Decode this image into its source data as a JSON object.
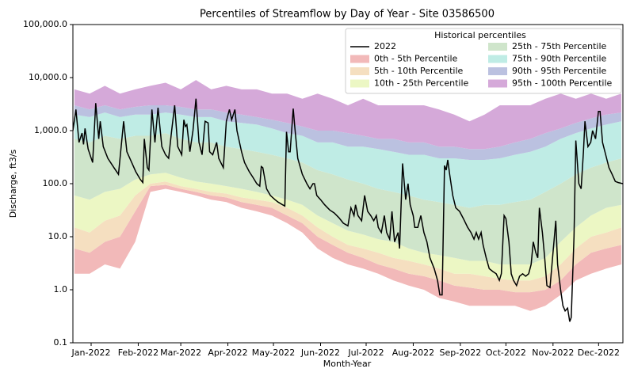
{
  "chart_data": {
    "type": "percentile-band",
    "title": "Percentiles of Streamflow by Day of Year - Site 03586500",
    "xlabel": "Month-Year",
    "ylabel": "Discharge, ft3/s",
    "legend_title": "Historical percentiles",
    "legend": "upper right",
    "ylog": true,
    "xlim": [
      -11,
      351
    ],
    "xticks": [
      {
        "value": 1,
        "label": "Jan-2022"
      },
      {
        "value": 32,
        "label": "Feb-2022"
      },
      {
        "value": 60,
        "label": "Mar-2022"
      },
      {
        "value": 91,
        "label": "Apr-2022"
      },
      {
        "value": 121,
        "label": "May-2022"
      },
      {
        "value": 152,
        "label": "Jun-2022"
      },
      {
        "value": 182,
        "label": "Jul-2022"
      },
      {
        "value": 213,
        "label": "Aug-2022"
      },
      {
        "value": 244,
        "label": "Sep-2022"
      },
      {
        "value": 274,
        "label": "Oct-2022"
      },
      {
        "value": 305,
        "label": "Nov-2022"
      },
      {
        "value": 335,
        "label": "Dec-2022"
      }
    ],
    "ylim": [
      0.1,
      100000
    ],
    "yticks": [
      0.1,
      {
        "value": 1,
        "label": "1.0"
      },
      {
        "value": 10,
        "label": "10.0"
      },
      {
        "value": 100,
        "label": "100.0"
      },
      {
        "value": 1000,
        "label": "1,000.0"
      },
      {
        "value": 10000,
        "label": "10,000.0"
      },
      {
        "value": 100000,
        "label": "100,000.0"
      }
    ],
    "x": [
      -10,
      0,
      10,
      20,
      30,
      40,
      50,
      60,
      70,
      80,
      90,
      100,
      110,
      120,
      130,
      140,
      150,
      160,
      170,
      180,
      190,
      200,
      210,
      220,
      230,
      240,
      250,
      260,
      270,
      280,
      290,
      300,
      310,
      320,
      330,
      340,
      350
    ],
    "boundaries": [
      {
        "values": [
          2,
          2,
          3,
          2.5,
          8,
          70,
          80,
          70,
          60,
          50,
          45,
          35,
          30,
          25,
          18,
          12,
          6,
          4,
          3,
          2.5,
          2,
          1.5,
          1.2,
          1,
          0.7,
          0.6,
          0.5,
          0.5,
          0.5,
          0.5,
          0.4,
          0.5,
          0.8,
          1.5,
          2,
          2.5,
          3
        ]
      },
      {
        "values": [
          6,
          5,
          8,
          10,
          30,
          90,
          95,
          80,
          70,
          60,
          55,
          45,
          40,
          35,
          25,
          18,
          10,
          7,
          5,
          4,
          3,
          2.5,
          2,
          1.8,
          1.5,
          1.2,
          1.1,
          1,
          1,
          0.9,
          0.9,
          1,
          1.5,
          3,
          5,
          6,
          7
        ]
      },
      {
        "values": [
          15,
          12,
          20,
          25,
          60,
          100,
          110,
          90,
          80,
          70,
          65,
          55,
          50,
          45,
          35,
          25,
          15,
          10,
          7,
          6,
          5,
          4,
          3.5,
          3,
          2.5,
          2,
          2,
          1.8,
          1.6,
          1.5,
          1.5,
          1.8,
          3,
          6,
          10,
          12,
          15
        ]
      },
      {
        "values": [
          60,
          50,
          70,
          80,
          120,
          150,
          160,
          130,
          110,
          100,
          90,
          80,
          70,
          60,
          50,
          40,
          25,
          18,
          13,
          11,
          9,
          8,
          6,
          5,
          4.5,
          4,
          3.5,
          3.5,
          3,
          3,
          3,
          4,
          8,
          15,
          25,
          35,
          40
        ]
      },
      {
        "values": [
          700,
          600,
          800,
          700,
          800,
          800,
          900,
          700,
          600,
          600,
          500,
          450,
          400,
          350,
          300,
          250,
          180,
          150,
          120,
          100,
          80,
          70,
          60,
          50,
          45,
          40,
          35,
          40,
          40,
          45,
          50,
          70,
          100,
          150,
          200,
          250,
          300
        ]
      },
      {
        "values": [
          2000,
          1800,
          2200,
          1800,
          2000,
          2000,
          2200,
          2000,
          1800,
          1800,
          1500,
          1400,
          1300,
          1100,
          900,
          800,
          600,
          600,
          500,
          500,
          450,
          400,
          350,
          350,
          300,
          300,
          280,
          280,
          300,
          350,
          400,
          500,
          700,
          900,
          1100,
          1300,
          1500
        ]
      },
      {
        "values": [
          3000,
          2500,
          3000,
          2500,
          2800,
          3000,
          3000,
          2800,
          2500,
          2500,
          2200,
          2000,
          1800,
          1600,
          1400,
          1200,
          1000,
          1000,
          900,
          800,
          700,
          700,
          600,
          600,
          500,
          500,
          450,
          450,
          500,
          600,
          700,
          900,
          1100,
          1400,
          1700,
          2000,
          2200
        ]
      },
      {
        "values": [
          6000,
          5000,
          7000,
          5000,
          6000,
          7000,
          8000,
          6000,
          9000,
          6000,
          7000,
          6000,
          6000,
          5000,
          5000,
          4000,
          5000,
          4000,
          3000,
          4000,
          3000,
          3000,
          3000,
          3000,
          2500,
          2000,
          1500,
          2000,
          3000,
          3000,
          3000,
          4000,
          5000,
          4000,
          5000,
          4000,
          5000
        ]
      }
    ],
    "bands": [
      {
        "name": "0th - 5th Percentile",
        "color": "#f2b9b9"
      },
      {
        "name": "5th - 10th Percentile",
        "color": "#f5dfc0"
      },
      {
        "name": "10th - 25th Percentile",
        "color": "#ecf7c4"
      },
      {
        "name": "25th - 75th Percentile",
        "color": "#cfe5cb"
      },
      {
        "name": "75th - 90th Percentile",
        "color": "#bfece5"
      },
      {
        "name": "90th - 95th Percentile",
        "color": "#bbc1e0"
      },
      {
        "name": "95th - 100th Percentile",
        "color": "#d5a9d9"
      }
    ],
    "series": [
      {
        "name": "2022",
        "color": "#000000",
        "x": [
          -11,
          -9,
          -7,
          -5,
          -4,
          -3,
          -1,
          2,
          4,
          6,
          7,
          9,
          12,
          16,
          19,
          22.4,
          24.5,
          27.7,
          30.3,
          33.4,
          35,
          36,
          38,
          39,
          41,
          43,
          45,
          47.5,
          50,
          52,
          54,
          56,
          58,
          60.6,
          62,
          63,
          64,
          66,
          68,
          70,
          72,
          74,
          76,
          78,
          79,
          81,
          83.6,
          85,
          88,
          90,
          92,
          93.5,
          95.6,
          97,
          100,
          102,
          105,
          107.6,
          110,
          112,
          113,
          114,
          116.5,
          119,
          122,
          124,
          127,
          128.5,
          129.6,
          131,
          132,
          134,
          135,
          137,
          140,
          143,
          145,
          147,
          148,
          149.5,
          152,
          154.7,
          158,
          161,
          164,
          167,
          170,
          172,
          174,
          175,
          176.6,
          179,
          181,
          183,
          185,
          187,
          188.7,
          190,
          192,
          194,
          195.5,
          197.5,
          199,
          200.7,
          203,
          204,
          206,
          208,
          209.6,
          211,
          213,
          214,
          216,
          218,
          220,
          222,
          224,
          226.8,
          229,
          230.5,
          232,
          233.6,
          234.7,
          235.7,
          237,
          239,
          241,
          243.5,
          246,
          248.8,
          251,
          253,
          254.5,
          256,
          257.7,
          259,
          261,
          263,
          265.5,
          267.6,
          269.7,
          271,
          272.8,
          274,
          276,
          277.5,
          279,
          281,
          283,
          285,
          287,
          289,
          290.6,
          292,
          293.7,
          295,
          296,
          298,
          299.5,
          301,
          303,
          305,
          306.8,
          308,
          310,
          311.5,
          313,
          314.6,
          316,
          317,
          318.8,
          320,
          322,
          323.5,
          325,
          326,
          328,
          329.8,
          331,
          333,
          334.9,
          336,
          337.6,
          339.7,
          341.8,
          343.9,
          346,
          348,
          351
        ],
        "values": [
          1000,
          2500,
          600,
          900,
          550,
          1100,
          450,
          250,
          3300,
          700,
          1500,
          500,
          300,
          200,
          150,
          1500,
          400,
          250,
          170,
          120,
          105,
          700,
          200,
          180,
          2500,
          600,
          2700,
          500,
          350,
          300,
          1000,
          3000,
          500,
          350,
          1600,
          1200,
          1300,
          400,
          1000,
          4000,
          600,
          350,
          1500,
          1400,
          400,
          350,
          600,
          300,
          200,
          1500,
          2500,
          1600,
          2500,
          1000,
          400,
          250,
          170,
          130,
          100,
          90,
          210,
          200,
          80,
          60,
          50,
          45,
          40,
          38,
          950,
          400,
          400,
          2600,
          1200,
          300,
          150,
          100,
          80,
          100,
          100,
          60,
          50,
          40,
          32,
          28,
          23,
          18,
          16,
          35,
          25,
          40,
          25,
          20,
          60,
          30,
          25,
          20,
          25,
          15,
          12,
          25,
          12,
          9,
          30,
          8,
          12,
          6,
          240,
          50,
          100,
          40,
          25,
          15,
          15,
          25,
          12,
          8,
          4,
          2.5,
          1.5,
          0.8,
          0.8,
          220,
          180,
          280,
          150,
          60,
          35,
          30,
          22,
          15,
          12,
          9,
          12,
          9,
          12,
          7,
          4,
          2.5,
          2.2,
          2,
          1.5,
          2,
          25,
          22,
          8,
          2,
          1.5,
          1.2,
          1.8,
          2,
          1.8,
          2,
          3,
          8,
          5,
          4,
          35,
          12,
          4,
          1.2,
          1.1,
          5,
          20,
          3,
          1,
          0.5,
          0.4,
          0.45,
          0.25,
          0.3,
          10,
          650,
          100,
          80,
          400,
          1500,
          500,
          600,
          1000,
          700,
          2300,
          2300,
          600,
          350,
          200,
          150,
          110,
          105,
          100
        ]
      }
    ]
  }
}
